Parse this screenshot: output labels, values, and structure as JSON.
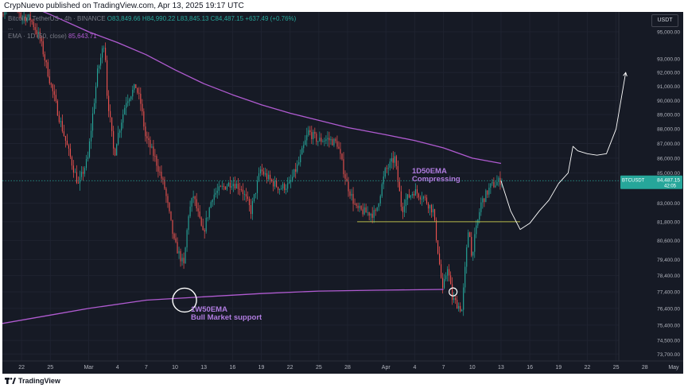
{
  "header": {
    "published_line": "CrypNuevo published on TradingView.com, Apr 13, 2025 19:17 UTC"
  },
  "legend": {
    "symbol_line": "Bitcoin / TetherUS · 4h · BINANCE",
    "ohlc": "O83,849.66 H84,990.22 L83,845.13 C84,487.15 +637.49 (+0.76%)",
    "dots": "...",
    "ema_label": "EMA · 1D (50, close)",
    "ema_value": "85,643.71"
  },
  "currency_button": "USDT",
  "price_tag": {
    "symbol": "BTCUSDT",
    "price": "84,487.15",
    "countdown": "42:05"
  },
  "annotations": {
    "daily_ema_line1": "1D50EMA",
    "daily_ema_line2": "Compressing",
    "weekly_ema_line1": "1W50EMA",
    "weekly_ema_line2": "Bull Market support"
  },
  "footer": {
    "brand": "TradingView"
  },
  "colors": {
    "up": "#26a69a",
    "down": "#ef5350",
    "ema": "#b05bd1",
    "annotation": "#b07ce0",
    "support_line": "#b5b84a",
    "projection": "#ffffff",
    "background": "#161a25"
  },
  "chart_data": {
    "type": "candlestick",
    "symbol": "Bitcoin / TetherUS",
    "interval": "4h",
    "exchange": "BINANCE",
    "y_ticks": [
      95000,
      93000,
      92000,
      91000,
      90000,
      89000,
      88000,
      87000,
      86000,
      85000,
      83000,
      81800,
      80600,
      79400,
      78400,
      77400,
      76400,
      75400,
      74500,
      73700
    ],
    "y_tick_labels": [
      "95,000.00",
      "93,000.00",
      "92,000.00",
      "91,000.00",
      "90,000.00",
      "89,000.00",
      "88,000.00",
      "87,000.00",
      "86,000.00",
      "85,000.00",
      "83,000.00",
      "81,800.00",
      "80,600.00",
      "79,400.00",
      "78,400.00",
      "77,400.00",
      "76,400.00",
      "75,400.00",
      "74,500.00",
      "73,700.00"
    ],
    "x_tick_labels": [
      "22",
      "25",
      "Mar",
      "4",
      "7",
      "10",
      "13",
      "16",
      "19",
      "22",
      "25",
      "28",
      "Apr",
      "4",
      "7",
      "10",
      "13",
      "16",
      "19",
      "22",
      "25",
      "28",
      "May"
    ],
    "x_tick_dates": [
      "2025-02-22",
      "2025-02-25",
      "2025-03-01",
      "2025-03-04",
      "2025-03-07",
      "2025-03-10",
      "2025-03-13",
      "2025-03-16",
      "2025-03-19",
      "2025-03-22",
      "2025-03-25",
      "2025-03-28",
      "2025-04-01",
      "2025-04-04",
      "2025-04-07",
      "2025-04-10",
      "2025-04-13",
      "2025-04-16",
      "2025-04-19",
      "2025-04-22",
      "2025-04-25",
      "2025-04-28",
      "2025-05-01"
    ],
    "x_range": [
      "2025-02-20",
      "2025-05-02"
    ],
    "y_range": [
      73300,
      96500
    ],
    "y_scale": "log",
    "last_price": 84487.15,
    "price_path": [
      [
        "2025-02-20",
        96300
      ],
      [
        "2025-02-21",
        98200
      ],
      [
        "2025-02-22",
        96200
      ],
      [
        "2025-02-23",
        96000
      ],
      [
        "2025-02-24",
        94500
      ],
      [
        "2025-02-25",
        91500
      ],
      [
        "2025-02-26",
        88800
      ],
      [
        "2025-02-27",
        86400
      ],
      [
        "2025-02-28",
        84200
      ],
      [
        "2025-03-01",
        86000
      ],
      [
        "2025-03-02",
        92000
      ],
      [
        "2025-03-02T18",
        94400
      ],
      [
        "2025-03-03",
        90500
      ],
      [
        "2025-03-03T18",
        86100
      ],
      [
        "2025-03-04",
        87200
      ],
      [
        "2025-03-05",
        90000
      ],
      [
        "2025-03-06",
        91000
      ],
      [
        "2025-03-06T12",
        89800
      ],
      [
        "2025-03-07",
        87500
      ],
      [
        "2025-03-08",
        86000
      ],
      [
        "2025-03-09",
        84000
      ],
      [
        "2025-03-10",
        80500
      ],
      [
        "2025-03-11",
        79000
      ],
      [
        "2025-03-11T12",
        82300
      ],
      [
        "2025-03-12",
        83500
      ],
      [
        "2025-03-13",
        81000
      ],
      [
        "2025-03-14",
        83500
      ],
      [
        "2025-03-15",
        84000
      ],
      [
        "2025-03-16",
        84400
      ],
      [
        "2025-03-17",
        84000
      ],
      [
        "2025-03-18",
        82500
      ],
      [
        "2025-03-19",
        85200
      ],
      [
        "2025-03-20",
        84500
      ],
      [
        "2025-03-21",
        84000
      ],
      [
        "2025-03-22",
        84200
      ],
      [
        "2025-03-23",
        85700
      ],
      [
        "2025-03-24",
        87800
      ],
      [
        "2025-03-25",
        87200
      ],
      [
        "2025-03-26",
        87300
      ],
      [
        "2025-03-27",
        87000
      ],
      [
        "2025-03-28",
        84300
      ],
      [
        "2025-03-29",
        82600
      ],
      [
        "2025-03-30",
        82400
      ],
      [
        "2025-03-31",
        82300
      ],
      [
        "2025-04-01",
        85100
      ],
      [
        "2025-04-02",
        86000
      ],
      [
        "2025-04-02T18",
        82500
      ],
      [
        "2025-04-03",
        83100
      ],
      [
        "2025-04-04",
        83800
      ],
      [
        "2025-04-05",
        83400
      ],
      [
        "2025-04-06",
        82500
      ],
      [
        "2025-04-07",
        77400
      ],
      [
        "2025-04-07T12",
        79000
      ],
      [
        "2025-04-08",
        77000
      ],
      [
        "2025-04-09",
        76300
      ],
      [
        "2025-04-09T18",
        81800
      ],
      [
        "2025-04-10",
        79600
      ],
      [
        "2025-04-11",
        83000
      ],
      [
        "2025-04-12",
        84100
      ],
      [
        "2025-04-13",
        84487
      ]
    ],
    "series": [
      {
        "name": "EMA · 1D (50, close)",
        "points": [
          [
            "2025-02-22",
            97200
          ],
          [
            "2025-02-25",
            96300
          ],
          [
            "2025-03-01",
            95000
          ],
          [
            "2025-03-04",
            94200
          ],
          [
            "2025-03-07",
            93300
          ],
          [
            "2025-03-10",
            92200
          ],
          [
            "2025-03-13",
            91200
          ],
          [
            "2025-03-16",
            90400
          ],
          [
            "2025-03-19",
            89700
          ],
          [
            "2025-03-22",
            89100
          ],
          [
            "2025-03-25",
            88600
          ],
          [
            "2025-03-28",
            88100
          ],
          [
            "2025-04-01",
            87600
          ],
          [
            "2025-04-04",
            87200
          ],
          [
            "2025-04-07",
            86700
          ],
          [
            "2025-04-10",
            86000
          ],
          [
            "2025-04-13",
            85644
          ]
        ]
      },
      {
        "name": "",
        "points": [
          [
            "2025-02-20",
            75500
          ],
          [
            "2025-02-25",
            76000
          ],
          [
            "2025-03-01",
            76400
          ],
          [
            "2025-03-07",
            76900
          ],
          [
            "2025-03-13",
            77100
          ],
          [
            "2025-03-19",
            77300
          ],
          [
            "2025-03-25",
            77450
          ],
          [
            "2025-03-31",
            77500
          ],
          [
            "2025-04-07",
            77550
          ]
        ]
      }
    ],
    "support_level": {
      "price": 81800,
      "from": "2025-03-29",
      "to": "2025-04-15"
    },
    "projection": [
      [
        "2025-04-13",
        84487
      ],
      [
        "2025-04-14",
        82500
      ],
      [
        "2025-04-15",
        81300
      ],
      [
        "2025-04-16",
        81700
      ],
      [
        "2025-04-17",
        82500
      ],
      [
        "2025-04-18",
        83200
      ],
      [
        "2025-04-19",
        84300
      ],
      [
        "2025-04-20",
        85000
      ],
      [
        "2025-04-20T12",
        86800
      ],
      [
        "2025-04-21",
        86500
      ],
      [
        "2025-04-22",
        86300
      ],
      [
        "2025-04-23",
        86200
      ],
      [
        "2025-04-24",
        86300
      ],
      [
        "2025-04-25",
        88000
      ],
      [
        "2025-04-26",
        92000
      ]
    ],
    "circles": [
      {
        "date": "2025-03-11",
        "price": 76900
      },
      {
        "date": "2025-04-08",
        "price": 77400
      }
    ]
  }
}
